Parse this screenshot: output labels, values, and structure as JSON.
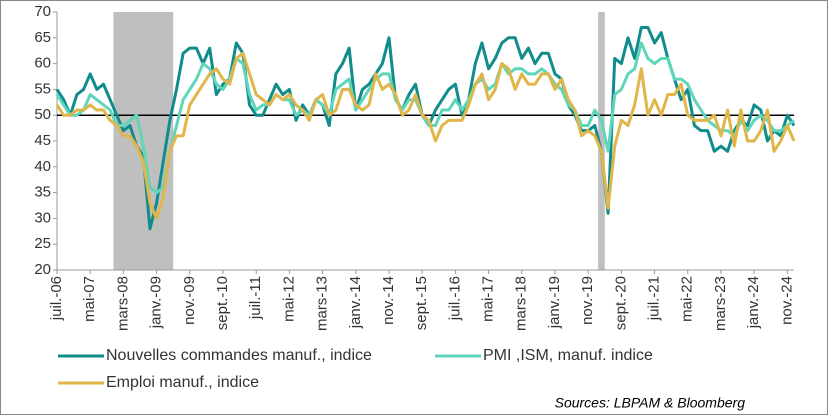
{
  "chart_data": {
    "type": "line",
    "categories": [
      "juil.-06",
      null,
      null,
      null,
      null,
      "mai-07",
      null,
      null,
      null,
      null,
      "mars-08",
      null,
      null,
      null,
      null,
      "janv.-09",
      null,
      null,
      null,
      null,
      "nov.-09",
      null,
      null,
      null,
      null,
      "sept.-10",
      null,
      null,
      null,
      null,
      "juil.-11",
      null,
      null,
      null,
      null,
      "mai-12",
      null,
      null,
      null,
      null,
      "mars-13",
      null,
      null,
      null,
      null,
      "janv.-14",
      null,
      null,
      null,
      null,
      "nov.-14",
      null,
      null,
      null,
      null,
      "sept.-15",
      null,
      null,
      null,
      null,
      "juil.-16",
      null,
      null,
      null,
      null,
      "mai-17",
      null,
      null,
      null,
      null,
      "mars-18",
      null,
      null,
      null,
      null,
      "janv.-19",
      null,
      null,
      null,
      null,
      "nov.-19",
      null,
      null,
      null,
      null,
      "sept.-20",
      null,
      null,
      null,
      null,
      "juil.-21",
      null,
      null,
      null,
      null,
      "mai-22",
      null,
      null,
      null,
      null,
      "mars-23",
      null,
      null,
      null,
      null,
      "janv.-24",
      null,
      null,
      null,
      null,
      "nov.-24",
      null
    ],
    "series": [
      {
        "name": "Nouvelles commandes manuf., indice",
        "color": "#108c8c",
        "values": [
          55,
          53,
          50,
          54,
          55,
          58,
          55,
          56,
          53,
          50,
          47,
          48,
          44,
          42,
          28,
          33,
          41,
          49,
          55,
          62,
          63,
          63,
          60,
          63,
          54,
          56,
          57,
          64,
          62,
          52,
          50,
          50,
          53,
          56,
          54,
          55,
          49,
          52,
          50,
          53,
          52,
          48,
          58,
          60,
          63,
          51,
          55,
          56,
          58,
          60,
          65,
          53,
          51,
          54,
          56,
          50,
          48,
          51,
          53,
          55,
          56,
          50,
          53,
          60,
          64,
          59,
          61,
          64,
          65,
          65,
          61,
          63,
          60,
          62,
          62,
          58,
          57,
          52,
          50,
          47,
          47,
          48,
          43,
          31,
          61,
          60,
          65,
          61,
          67,
          67,
          64,
          66,
          61,
          57,
          53,
          55,
          48,
          47,
          47,
          43,
          44,
          43,
          47,
          49,
          48,
          52,
          51,
          45,
          47,
          46,
          50,
          48
        ]
      },
      {
        "name": "PMI ,ISM, manuf. indice",
        "color": "#5fd6b9",
        "values": [
          54,
          52,
          50,
          50,
          51,
          54,
          53,
          52,
          51,
          48,
          48,
          49,
          50,
          44,
          36,
          35,
          36,
          43,
          48,
          53,
          55,
          57,
          60,
          59,
          56,
          55,
          57,
          61,
          60,
          54,
          51,
          52,
          52,
          54,
          53,
          53,
          50,
          51,
          50,
          53,
          52,
          50,
          55,
          56,
          57,
          51,
          53,
          55,
          57,
          58,
          58,
          53,
          51,
          53,
          53,
          50,
          48,
          48,
          51,
          51,
          53,
          51,
          53,
          56,
          57,
          55,
          56,
          60,
          58,
          59,
          59,
          58,
          58,
          59,
          58,
          56,
          55,
          52,
          51,
          48,
          48,
          51,
          49,
          43,
          54,
          55,
          58,
          59,
          64,
          61,
          60,
          61,
          61,
          57,
          57,
          56,
          53,
          51,
          49,
          48,
          47,
          47,
          46,
          49,
          47,
          49,
          50,
          49,
          47,
          47,
          48,
          49
        ]
      },
      {
        "name": "Emploi manuf., indice",
        "color": "#e0b64a",
        "values": [
          52,
          50,
          50,
          51,
          51,
          52,
          51,
          51,
          49,
          48,
          46,
          46,
          44,
          41,
          33,
          30,
          34,
          43,
          46,
          46,
          52,
          54,
          56,
          58,
          59,
          57,
          56,
          61,
          62,
          58,
          54,
          53,
          52,
          54,
          53,
          54,
          52,
          51,
          49,
          53,
          54,
          50,
          51,
          55,
          55,
          52,
          51,
          52,
          58,
          55,
          56,
          54,
          50,
          51,
          54,
          50,
          49,
          45,
          48,
          49,
          49,
          49,
          52,
          56,
          58,
          53,
          55,
          60,
          59,
          55,
          58,
          56,
          56,
          58,
          58,
          55,
          57,
          53,
          51,
          46,
          47,
          46,
          43,
          32,
          44,
          49,
          48,
          52,
          59,
          50,
          53,
          50,
          54,
          54,
          56,
          50,
          49,
          49,
          49,
          50,
          46,
          51,
          44,
          51,
          45,
          45,
          47,
          51,
          43,
          45,
          48,
          45
        ]
      }
    ],
    "ylim": [
      20,
      70
    ],
    "yticks": [
      20,
      25,
      30,
      35,
      40,
      45,
      50,
      55,
      60,
      65,
      70
    ],
    "hline": 50,
    "shaded": [
      [
        8.5,
        17.5
      ],
      [
        81.5,
        82.5
      ]
    ],
    "source": "Sources: LBPAM & Bloomberg"
  }
}
